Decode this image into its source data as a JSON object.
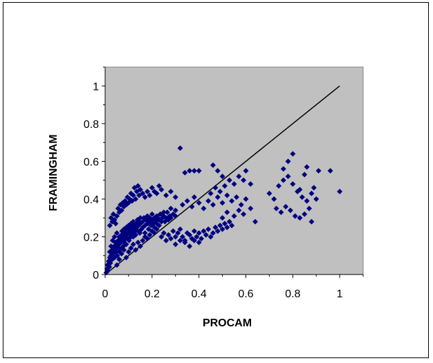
{
  "chart_data": {
    "type": "scatter",
    "title": "",
    "xlabel": "PROCAM",
    "ylabel": "FRAMINGHAM",
    "xlim": [
      0,
      1.1
    ],
    "ylim": [
      0,
      1.1
    ],
    "x_ticks": [
      "0",
      "0.2",
      "0.4",
      "0.6",
      "0.8",
      "1"
    ],
    "y_ticks": [
      "0",
      "0.2",
      "0.4",
      "0.6",
      "0.8",
      "1"
    ],
    "grid": false,
    "legend": "none",
    "plot_background": "#C0C0C0",
    "marker_color": "#000080",
    "marker_shape": "diamond",
    "reference_line": {
      "x": [
        0,
        1
      ],
      "y": [
        0,
        1
      ],
      "color": "#000000"
    },
    "series": [
      {
        "points": [
          [
            0.005,
            0.01
          ],
          [
            0.008,
            0.03
          ],
          [
            0.01,
            0.05
          ],
          [
            0.012,
            0.02
          ],
          [
            0.015,
            0.07
          ],
          [
            0.018,
            0.04
          ],
          [
            0.02,
            0.09
          ],
          [
            0.02,
            0.12
          ],
          [
            0.022,
            0.06
          ],
          [
            0.025,
            0.1
          ],
          [
            0.025,
            0.15
          ],
          [
            0.03,
            0.08
          ],
          [
            0.03,
            0.13
          ],
          [
            0.032,
            0.18
          ],
          [
            0.035,
            0.11
          ],
          [
            0.038,
            0.15
          ],
          [
            0.04,
            0.09
          ],
          [
            0.04,
            0.2
          ],
          [
            0.042,
            0.13
          ],
          [
            0.045,
            0.17
          ],
          [
            0.048,
            0.12
          ],
          [
            0.05,
            0.15
          ],
          [
            0.05,
            0.22
          ],
          [
            0.052,
            0.1
          ],
          [
            0.055,
            0.18
          ],
          [
            0.058,
            0.14
          ],
          [
            0.06,
            0.2
          ],
          [
            0.06,
            0.16
          ],
          [
            0.062,
            0.12
          ],
          [
            0.065,
            0.19
          ],
          [
            0.068,
            0.17
          ],
          [
            0.07,
            0.21
          ],
          [
            0.07,
            0.14
          ],
          [
            0.072,
            0.23
          ],
          [
            0.075,
            0.18
          ],
          [
            0.078,
            0.15
          ],
          [
            0.08,
            0.2
          ],
          [
            0.08,
            0.24
          ],
          [
            0.082,
            0.17
          ],
          [
            0.085,
            0.22
          ],
          [
            0.088,
            0.19
          ],
          [
            0.09,
            0.25
          ],
          [
            0.09,
            0.16
          ],
          [
            0.092,
            0.21
          ],
          [
            0.095,
            0.23
          ],
          [
            0.098,
            0.19
          ],
          [
            0.1,
            0.26
          ],
          [
            0.1,
            0.22
          ],
          [
            0.102,
            0.18
          ],
          [
            0.105,
            0.24
          ],
          [
            0.108,
            0.21
          ],
          [
            0.11,
            0.27
          ],
          [
            0.11,
            0.2
          ],
          [
            0.112,
            0.23
          ],
          [
            0.115,
            0.25
          ],
          [
            0.118,
            0.22
          ],
          [
            0.12,
            0.28
          ],
          [
            0.12,
            0.2
          ],
          [
            0.122,
            0.24
          ],
          [
            0.125,
            0.26
          ],
          [
            0.128,
            0.23
          ],
          [
            0.13,
            0.27
          ],
          [
            0.13,
            0.21
          ],
          [
            0.135,
            0.25
          ],
          [
            0.138,
            0.29
          ],
          [
            0.14,
            0.23
          ],
          [
            0.142,
            0.26
          ],
          [
            0.145,
            0.28
          ],
          [
            0.148,
            0.22
          ],
          [
            0.15,
            0.27
          ],
          [
            0.15,
            0.3
          ],
          [
            0.155,
            0.24
          ],
          [
            0.16,
            0.28
          ],
          [
            0.16,
            0.25
          ],
          [
            0.165,
            0.3
          ],
          [
            0.17,
            0.26
          ],
          [
            0.17,
            0.22
          ],
          [
            0.175,
            0.29
          ],
          [
            0.18,
            0.27
          ],
          [
            0.18,
            0.31
          ],
          [
            0.185,
            0.24
          ],
          [
            0.19,
            0.28
          ],
          [
            0.19,
            0.3
          ],
          [
            0.195,
            0.26
          ],
          [
            0.2,
            0.29
          ],
          [
            0.2,
            0.32
          ],
          [
            0.205,
            0.27
          ],
          [
            0.21,
            0.3
          ],
          [
            0.21,
            0.25
          ],
          [
            0.215,
            0.28
          ],
          [
            0.22,
            0.31
          ],
          [
            0.22,
            0.27
          ],
          [
            0.225,
            0.3
          ],
          [
            0.23,
            0.29
          ],
          [
            0.235,
            0.32
          ],
          [
            0.24,
            0.28
          ],
          [
            0.245,
            0.3
          ],
          [
            0.25,
            0.31
          ],
          [
            0.255,
            0.28
          ],
          [
            0.26,
            0.3
          ],
          [
            0.265,
            0.33
          ],
          [
            0.27,
            0.29
          ],
          [
            0.275,
            0.31
          ],
          [
            0.28,
            0.3
          ],
          [
            0.29,
            0.32
          ],
          [
            0.3,
            0.31
          ],
          [
            0.02,
            0.26
          ],
          [
            0.025,
            0.3
          ],
          [
            0.03,
            0.28
          ],
          [
            0.035,
            0.32
          ],
          [
            0.04,
            0.29
          ],
          [
            0.045,
            0.27
          ],
          [
            0.05,
            0.31
          ],
          [
            0.055,
            0.35
          ],
          [
            0.06,
            0.33
          ],
          [
            0.065,
            0.37
          ],
          [
            0.07,
            0.34
          ],
          [
            0.075,
            0.38
          ],
          [
            0.08,
            0.36
          ],
          [
            0.085,
            0.39
          ],
          [
            0.09,
            0.37
          ],
          [
            0.095,
            0.41
          ],
          [
            0.1,
            0.38
          ],
          [
            0.105,
            0.4
          ],
          [
            0.11,
            0.43
          ],
          [
            0.115,
            0.39
          ],
          [
            0.12,
            0.42
          ],
          [
            0.125,
            0.46
          ],
          [
            0.13,
            0.4
          ],
          [
            0.135,
            0.44
          ],
          [
            0.14,
            0.47
          ],
          [
            0.145,
            0.42
          ],
          [
            0.15,
            0.45
          ],
          [
            0.16,
            0.43
          ],
          [
            0.17,
            0.41
          ],
          [
            0.18,
            0.44
          ],
          [
            0.19,
            0.42
          ],
          [
            0.2,
            0.46
          ],
          [
            0.21,
            0.44
          ],
          [
            0.22,
            0.43
          ],
          [
            0.23,
            0.47
          ],
          [
            0.24,
            0.45
          ],
          [
            0.26,
            0.42
          ],
          [
            0.28,
            0.44
          ],
          [
            0.3,
            0.41
          ],
          [
            0.32,
            0.67
          ],
          [
            0.05,
            0.05
          ],
          [
            0.06,
            0.08
          ],
          [
            0.07,
            0.11
          ],
          [
            0.08,
            0.13
          ],
          [
            0.09,
            0.09
          ],
          [
            0.1,
            0.12
          ],
          [
            0.11,
            0.14
          ],
          [
            0.12,
            0.16
          ],
          [
            0.13,
            0.13
          ],
          [
            0.14,
            0.17
          ],
          [
            0.15,
            0.15
          ],
          [
            0.16,
            0.18
          ],
          [
            0.17,
            0.2
          ],
          [
            0.18,
            0.19
          ],
          [
            0.19,
            0.21
          ],
          [
            0.2,
            0.23
          ],
          [
            0.21,
            0.22
          ],
          [
            0.22,
            0.24
          ],
          [
            0.23,
            0.26
          ],
          [
            0.24,
            0.2
          ],
          [
            0.25,
            0.22
          ],
          [
            0.26,
            0.18
          ],
          [
            0.27,
            0.21
          ],
          [
            0.28,
            0.19
          ],
          [
            0.29,
            0.23
          ],
          [
            0.3,
            0.2
          ],
          [
            0.31,
            0.22
          ],
          [
            0.32,
            0.24
          ],
          [
            0.33,
            0.2
          ],
          [
            0.34,
            0.18
          ],
          [
            0.35,
            0.22
          ],
          [
            0.36,
            0.21
          ],
          [
            0.37,
            0.19
          ],
          [
            0.38,
            0.23
          ],
          [
            0.39,
            0.2
          ],
          [
            0.4,
            0.22
          ],
          [
            0.41,
            0.19
          ],
          [
            0.42,
            0.23
          ],
          [
            0.43,
            0.21
          ],
          [
            0.44,
            0.24
          ],
          [
            0.45,
            0.2
          ],
          [
            0.46,
            0.22
          ],
          [
            0.47,
            0.25
          ],
          [
            0.48,
            0.23
          ],
          [
            0.49,
            0.26
          ],
          [
            0.5,
            0.24
          ],
          [
            0.51,
            0.27
          ],
          [
            0.52,
            0.25
          ],
          [
            0.53,
            0.28
          ],
          [
            0.54,
            0.26
          ],
          [
            0.3,
            0.16
          ],
          [
            0.32,
            0.18
          ],
          [
            0.34,
            0.17
          ],
          [
            0.36,
            0.15
          ],
          [
            0.38,
            0.18
          ],
          [
            0.4,
            0.17
          ],
          [
            0.22,
            0.3
          ],
          [
            0.25,
            0.33
          ],
          [
            0.28,
            0.35
          ],
          [
            0.3,
            0.34
          ],
          [
            0.33,
            0.37
          ],
          [
            0.35,
            0.39
          ],
          [
            0.37,
            0.36
          ],
          [
            0.38,
            0.41
          ],
          [
            0.4,
            0.38
          ],
          [
            0.42,
            0.35
          ],
          [
            0.44,
            0.39
          ],
          [
            0.46,
            0.37
          ],
          [
            0.48,
            0.41
          ],
          [
            0.5,
            0.38
          ],
          [
            0.52,
            0.42
          ],
          [
            0.54,
            0.39
          ],
          [
            0.56,
            0.41
          ],
          [
            0.58,
            0.37
          ],
          [
            0.6,
            0.4
          ],
          [
            0.62,
            0.35
          ],
          [
            0.64,
            0.28
          ],
          [
            0.5,
            0.3
          ],
          [
            0.52,
            0.33
          ],
          [
            0.55,
            0.31
          ],
          [
            0.57,
            0.34
          ],
          [
            0.59,
            0.32
          ],
          [
            0.45,
            0.43
          ],
          [
            0.47,
            0.46
          ],
          [
            0.49,
            0.44
          ],
          [
            0.51,
            0.47
          ],
          [
            0.53,
            0.5
          ],
          [
            0.55,
            0.48
          ],
          [
            0.57,
            0.52
          ],
          [
            0.59,
            0.5
          ],
          [
            0.62,
            0.48
          ],
          [
            0.6,
            0.55
          ],
          [
            0.46,
            0.58
          ],
          [
            0.48,
            0.55
          ],
          [
            0.5,
            0.52
          ],
          [
            0.34,
            0.54
          ],
          [
            0.36,
            0.55
          ],
          [
            0.38,
            0.55
          ],
          [
            0.4,
            0.55
          ],
          [
            0.7,
            0.43
          ],
          [
            0.72,
            0.4
          ],
          [
            0.74,
            0.47
          ],
          [
            0.76,
            0.5
          ],
          [
            0.78,
            0.52
          ],
          [
            0.8,
            0.48
          ],
          [
            0.82,
            0.44
          ],
          [
            0.84,
            0.41
          ],
          [
            0.86,
            0.39
          ],
          [
            0.88,
            0.43
          ],
          [
            0.9,
            0.4
          ],
          [
            0.73,
            0.35
          ],
          [
            0.75,
            0.33
          ],
          [
            0.77,
            0.36
          ],
          [
            0.79,
            0.34
          ],
          [
            0.81,
            0.31
          ],
          [
            0.83,
            0.3
          ],
          [
            0.85,
            0.32
          ],
          [
            0.87,
            0.35
          ],
          [
            0.89,
            0.46
          ],
          [
            0.91,
            0.55
          ],
          [
            0.86,
            0.57
          ],
          [
            0.78,
            0.6
          ],
          [
            0.8,
            0.64
          ],
          [
            0.85,
            0.53
          ],
          [
            0.96,
            0.55
          ],
          [
            1.0,
            0.44
          ],
          [
            0.88,
            0.28
          ],
          [
            0.83,
            0.45
          ],
          [
            0.76,
            0.56
          ]
        ]
      }
    ]
  }
}
